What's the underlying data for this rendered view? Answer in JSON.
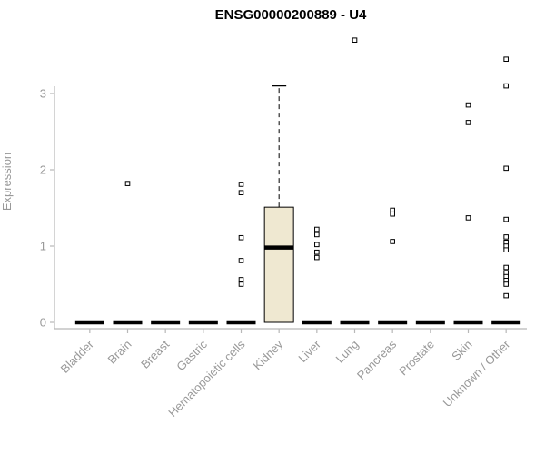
{
  "chart_data": {
    "type": "boxplot",
    "title": "ENSG00000200889 - U4",
    "ylabel": "Expression",
    "xlabel": "",
    "ylim": [
      0,
      3.8
    ],
    "yticks": [
      0,
      1,
      2,
      3
    ],
    "grid": false,
    "legend": false,
    "categories": [
      "Bladder",
      "Brain",
      "Breast",
      "Gastric",
      "Hematopoietic cells",
      "Kidney",
      "Liver",
      "Lung",
      "Pancreas",
      "Prostate",
      "Skin",
      "Unknown / Other"
    ],
    "boxes": [
      {
        "category": "Bladder",
        "whisker_low": 0,
        "q1": 0,
        "median": 0,
        "q3": 0,
        "whisker_high": 0,
        "outliers": []
      },
      {
        "category": "Brain",
        "whisker_low": 0,
        "q1": 0,
        "median": 0,
        "q3": 0,
        "whisker_high": 0,
        "outliers": [
          1.82
        ]
      },
      {
        "category": "Breast",
        "whisker_low": 0,
        "q1": 0,
        "median": 0,
        "q3": 0,
        "whisker_high": 0,
        "outliers": []
      },
      {
        "category": "Gastric",
        "whisker_low": 0,
        "q1": 0,
        "median": 0,
        "q3": 0,
        "whisker_high": 0,
        "outliers": []
      },
      {
        "category": "Hematopoietic cells",
        "whisker_low": 0,
        "q1": 0,
        "median": 0,
        "q3": 0,
        "whisker_high": 0,
        "outliers": [
          1.81,
          1.7,
          1.11,
          0.81,
          0.56,
          0.5
        ]
      },
      {
        "category": "Kidney",
        "whisker_low": 0,
        "q1": 0,
        "median": 0.98,
        "q3": 1.51,
        "whisker_high": 3.1,
        "outliers": []
      },
      {
        "category": "Liver",
        "whisker_low": 0,
        "q1": 0,
        "median": 0,
        "q3": 0,
        "whisker_high": 0,
        "outliers": [
          1.22,
          1.15,
          1.02,
          0.92,
          0.85
        ]
      },
      {
        "category": "Lung",
        "whisker_low": 0,
        "q1": 0,
        "median": 0,
        "q3": 0,
        "whisker_high": 0,
        "outliers": [
          3.7
        ]
      },
      {
        "category": "Pancreas",
        "whisker_low": 0,
        "q1": 0,
        "median": 0,
        "q3": 0,
        "whisker_high": 0,
        "outliers": [
          1.47,
          1.42,
          1.06
        ]
      },
      {
        "category": "Prostate",
        "whisker_low": 0,
        "q1": 0,
        "median": 0,
        "q3": 0,
        "whisker_high": 0,
        "outliers": []
      },
      {
        "category": "Skin",
        "whisker_low": 0,
        "q1": 0,
        "median": 0,
        "q3": 0,
        "whisker_high": 0,
        "outliers": [
          2.85,
          2.62,
          1.37
        ]
      },
      {
        "category": "Unknown / Other",
        "whisker_low": 0,
        "q1": 0,
        "median": 0,
        "q3": 0,
        "whisker_high": 0,
        "outliers": [
          3.45,
          3.1,
          2.02,
          1.35,
          1.12,
          1.05,
          1.0,
          0.95,
          0.72,
          0.65,
          0.6,
          0.55,
          0.5,
          0.35
        ]
      }
    ],
    "colors": {
      "box_fill": "#EFE8D1",
      "box_stroke": "#000000",
      "median": "#000000",
      "outlier_stroke": "#000000",
      "axis": "#B8B8B8",
      "tick_label": "#999999",
      "title": "#000000"
    }
  }
}
